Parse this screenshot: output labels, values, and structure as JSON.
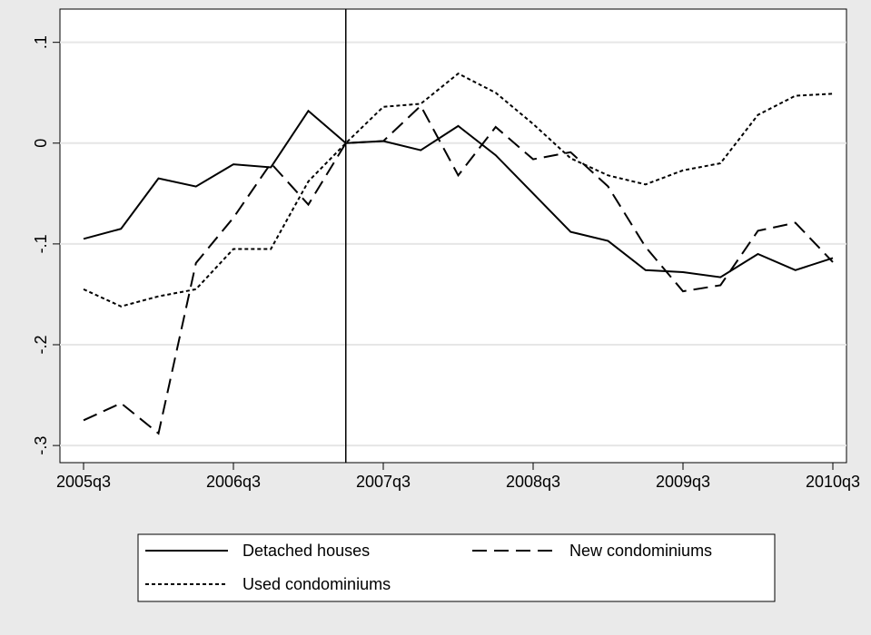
{
  "chart_data": {
    "type": "line",
    "categories": [
      "2005q3",
      null,
      null,
      null,
      "2006q3",
      null,
      null,
      null,
      "2007q3",
      null,
      null,
      null,
      "2008q3",
      null,
      null,
      null,
      "2009q3",
      null,
      null,
      null,
      "2010q3"
    ],
    "series": [
      {
        "name": "Detached houses",
        "color": "#000000",
        "style": "solid",
        "values": [
          -0.095,
          -0.085,
          -0.035,
          -0.043,
          -0.021,
          -0.024,
          0.032,
          0,
          0.002,
          -0.007,
          0.017,
          -0.012,
          -0.05,
          -0.088,
          -0.097,
          -0.126,
          -0.128,
          -0.133,
          -0.11,
          -0.126,
          -0.114
        ]
      },
      {
        "name": "New condominiums",
        "color": "#000000",
        "style": "dash",
        "values": [
          -0.275,
          -0.258,
          -0.288,
          -0.119,
          -0.074,
          -0.02,
          -0.061,
          0,
          0.002,
          0.037,
          -0.032,
          0.016,
          -0.016,
          -0.009,
          -0.043,
          -0.103,
          -0.147,
          -0.141,
          -0.087,
          -0.079,
          -0.118
        ]
      },
      {
        "name": "Used condominiums",
        "color": "#000000",
        "style": "dot",
        "values": [
          -0.145,
          -0.162,
          -0.152,
          -0.145,
          -0.105,
          -0.105,
          -0.038,
          0,
          0.036,
          0.039,
          0.069,
          0.05,
          0.019,
          -0.015,
          -0.032,
          -0.041,
          -0.027,
          -0.02,
          0.028,
          0.047,
          0.049
        ]
      }
    ],
    "ylim": [
      -0.317,
      0.133
    ],
    "yticks": [
      {
        "value": -0.3,
        "label": "-.3"
      },
      {
        "value": -0.2,
        "label": "-.2"
      },
      {
        "value": -0.1,
        "label": "-.1"
      },
      0,
      {
        "value": 0.1,
        "label": ".1"
      }
    ],
    "reference_line_index": 7,
    "grid": true,
    "legend": "bottom"
  }
}
